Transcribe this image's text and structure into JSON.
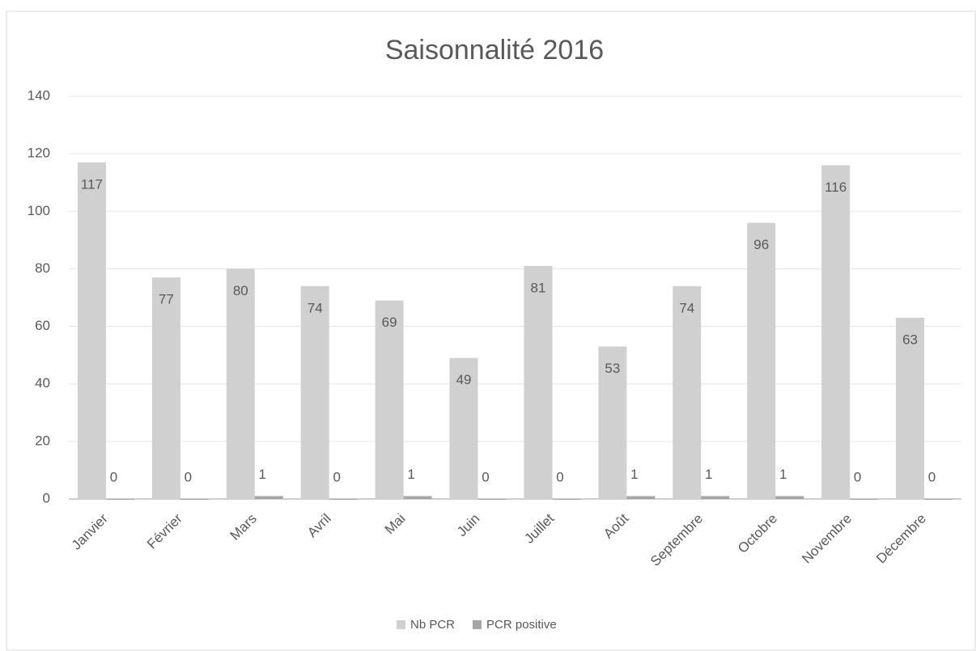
{
  "chart_data": {
    "type": "bar",
    "title": "Saisonnalité 2016",
    "categories": [
      "Janvier",
      "Février",
      "Mars",
      "Avril",
      "Mai",
      "Juin",
      "Juillet",
      "Août",
      "Septembre",
      "Octobre",
      "Novembre",
      "Décembre"
    ],
    "series": [
      {
        "name": "Nb PCR",
        "color": "#d0d0d0",
        "values": [
          117,
          77,
          80,
          74,
          69,
          49,
          81,
          53,
          74,
          96,
          116,
          63
        ]
      },
      {
        "name": "PCR positive",
        "color": "#a6a6a6",
        "values": [
          0,
          0,
          1,
          0,
          1,
          0,
          0,
          1,
          1,
          1,
          0,
          0
        ]
      }
    ],
    "ylim": [
      0,
      140
    ],
    "yticks": [
      0,
      20,
      40,
      60,
      80,
      100,
      120,
      140
    ],
    "grid": true,
    "legend": "bottom"
  }
}
